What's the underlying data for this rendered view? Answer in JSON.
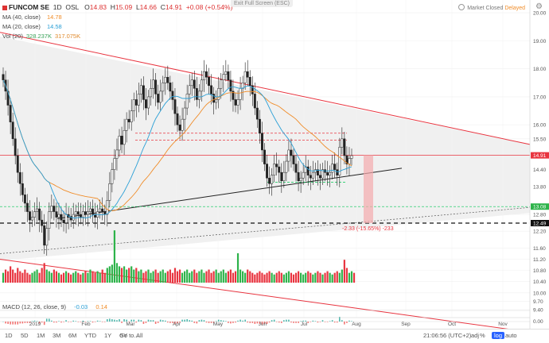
{
  "header": {
    "symbol": "FUNCOM SE",
    "interval": "1D",
    "exchange": "OSL",
    "o_label": "O",
    "o": "14.83",
    "h_label": "H",
    "h": "15.09",
    "l_label": "L",
    "l": "14.66",
    "c_label": "C",
    "c": "14.91",
    "change": "+0.08 (+0.54%)"
  },
  "indicators": {
    "ma40": {
      "label": "MA (40, close)",
      "value": "14.78"
    },
    "ma20": {
      "label": "MA (20, close)",
      "value": "14.58"
    },
    "vol": {
      "label": "Vol (20)",
      "value1": "328.237K",
      "value2": "317.075K"
    },
    "macd": {
      "label": "MACD (12, 26, close, 9)",
      "v1": "-0.03",
      "v2": "0.14"
    }
  },
  "fullscreen_label": "Exit Full Screen (ESC)",
  "market_status": {
    "text": "Market Closed",
    "delay": "Delayed"
  },
  "bottom_bar": {
    "ranges": [
      "1D",
      "5D",
      "1M",
      "3M",
      "6M",
      "YTD",
      "1Y",
      "5Y",
      "All"
    ],
    "goto": "Go to...",
    "time": "21:06:56 (UTC+2)",
    "pct": "%",
    "log": "log",
    "auto": "auto",
    "adj": "adj"
  },
  "colors": {
    "up": "#2db34a",
    "down": "#e8343f",
    "ma40": "#f08c28",
    "ma20": "#2a9fd6",
    "channel": "#e8343f",
    "support": "#00c853"
  },
  "chart_data": {
    "type": "candlestick",
    "y_axis_ticks": [
      "20.00",
      "19.00",
      "18.00",
      "17.00",
      "16.00",
      "15.50",
      "14.91",
      "14.40",
      "13.80",
      "13.08",
      "12.80",
      "12.49",
      "12.20",
      "11.60",
      "11.20",
      "10.80",
      "10.40",
      "10.00",
      "9.70",
      "9.40"
    ],
    "macd_ticks": [
      "0.00"
    ],
    "x_axis_ticks": [
      "2019",
      "Feb",
      "Mar",
      "Apr",
      "May",
      "Jun",
      "Jul",
      "Aug",
      "Sep",
      "Oct",
      "Nov"
    ],
    "current_price": "14.91",
    "support_level": "13.08",
    "low_level": "12.49",
    "measure_label": "-2.33 (-15.65%) -233",
    "closes": [
      17.6,
      17.2,
      16.7,
      16.1,
      15.5,
      14.9,
      14.3,
      13.9,
      13.5,
      13.2,
      12.9,
      12.6,
      12.7,
      12.9,
      13.0,
      12.6,
      12.4,
      11.7,
      12.3,
      12.9,
      13.1,
      12.9,
      12.7,
      12.8,
      12.6,
      12.5,
      12.8,
      12.7,
      12.6,
      12.8,
      12.9,
      12.8,
      12.7,
      12.9,
      12.8,
      12.9,
      13.0,
      12.8,
      12.7,
      12.9,
      13.0,
      12.9,
      12.8,
      13.3,
      13.9,
      14.4,
      14.8,
      15.1,
      15.6,
      15.3,
      15.8,
      16.2,
      16.1,
      16.5,
      16.9,
      16.7,
      17.1,
      17.4,
      16.9,
      16.6,
      17.0,
      17.3,
      17.6,
      17.1,
      16.8,
      17.2,
      17.5,
      17.7,
      17.5,
      17.2,
      16.9,
      16.4,
      16.0,
      15.8,
      16.2,
      16.6,
      17.1,
      17.4,
      17.6,
      17.3,
      16.9,
      17.2,
      17.6,
      17.9,
      17.7,
      17.4,
      17.1,
      16.8,
      16.9,
      17.3,
      17.6,
      17.8,
      17.9,
      17.6,
      17.2,
      16.9,
      16.7,
      16.9,
      17.3,
      17.5,
      17.9,
      17.7,
      17.4,
      17.1,
      16.6,
      16.2,
      15.7,
      15.1,
      14.6,
      14.1,
      13.9,
      14.2,
      14.6,
      14.5,
      14.3,
      14.0,
      14.3,
      14.7,
      15.1,
      14.9,
      14.6,
      14.3,
      14.0,
      14.1,
      14.3,
      14.5,
      14.2,
      14.1,
      14.3,
      14.4,
      14.2,
      14.1,
      14.4,
      14.3,
      14.2,
      14.3,
      14.6,
      14.4,
      14.2,
      15.2,
      15.5,
      14.9,
      14.6,
      14.8,
      14.9
    ],
    "volumes": [
      0.3,
      0.4,
      0.35,
      0.5,
      0.4,
      0.3,
      0.45,
      0.35,
      0.3,
      0.4,
      0.3,
      0.25,
      0.3,
      0.35,
      0.4,
      0.3,
      0.45,
      0.6,
      0.4,
      0.35,
      0.3,
      0.4,
      0.35,
      0.3,
      0.25,
      0.3,
      0.35,
      0.3,
      0.25,
      0.3,
      0.35,
      0.3,
      0.25,
      0.3,
      0.35,
      0.3,
      0.4,
      0.35,
      0.3,
      0.35,
      0.3,
      0.4,
      0.3,
      0.45,
      0.5,
      0.55,
      1.6,
      0.6,
      0.5,
      0.45,
      0.5,
      0.4,
      0.45,
      0.5,
      0.4,
      0.45,
      0.35,
      0.4,
      0.3,
      0.35,
      0.4,
      0.3,
      0.35,
      0.4,
      0.3,
      0.35,
      0.4,
      0.3,
      0.35,
      0.4,
      0.3,
      0.45,
      0.35,
      0.4,
      0.3,
      0.35,
      0.4,
      0.3,
      0.35,
      0.4,
      0.3,
      0.35,
      0.4,
      0.3,
      0.35,
      0.4,
      0.3,
      0.35,
      0.4,
      0.3,
      0.35,
      0.4,
      0.3,
      0.35,
      0.4,
      0.3,
      0.35,
      0.9,
      0.4,
      0.35,
      0.3,
      0.4,
      0.35,
      0.3,
      0.25,
      0.3,
      0.35,
      0.3,
      0.25,
      0.3,
      0.35,
      0.3,
      0.25,
      0.3,
      0.35,
      0.3,
      0.25,
      0.3,
      0.35,
      0.3,
      0.25,
      0.3,
      0.35,
      0.3,
      0.25,
      0.3,
      0.35,
      0.3,
      0.25,
      0.3,
      0.35,
      0.3,
      0.25,
      0.3,
      0.35,
      0.3,
      0.25,
      0.3,
      0.35,
      0.3,
      0.4,
      0.7,
      0.45,
      0.3,
      0.35,
      0.3
    ],
    "y_range": [
      9.4,
      20.4
    ],
    "volume_range": [
      0,
      1.7
    ],
    "grid": true,
    "legend": "top-left"
  }
}
